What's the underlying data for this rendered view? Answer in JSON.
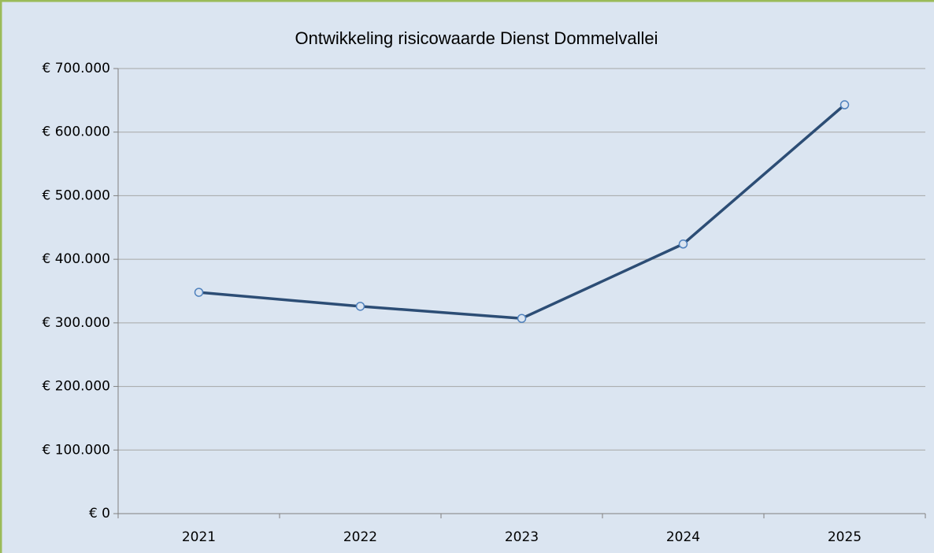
{
  "chart_data": {
    "type": "line",
    "title": "Ontwikkeling risicowaarde Dienst Dommelvallei",
    "categories": [
      "2021",
      "2022",
      "2023",
      "2024",
      "2025"
    ],
    "values": [
      348000,
      326000,
      307000,
      424000,
      643000
    ],
    "color": "#2c4d75",
    "marker_color": "#4f81bd",
    "ylim": [
      0,
      700000
    ],
    "yticks": [
      {
        "value": 0,
        "label": "€ 0"
      },
      {
        "value": 100000,
        "label": "€ 100.000"
      },
      {
        "value": 200000,
        "label": "€ 200.000"
      },
      {
        "value": 300000,
        "label": "€ 300.000"
      },
      {
        "value": 400000,
        "label": "€ 400.000"
      },
      {
        "value": 500000,
        "label": "€ 500.000"
      },
      {
        "value": 600000,
        "label": "€ 600.000"
      },
      {
        "value": 700000,
        "label": "€ 700.000"
      }
    ],
    "grid": true
  }
}
